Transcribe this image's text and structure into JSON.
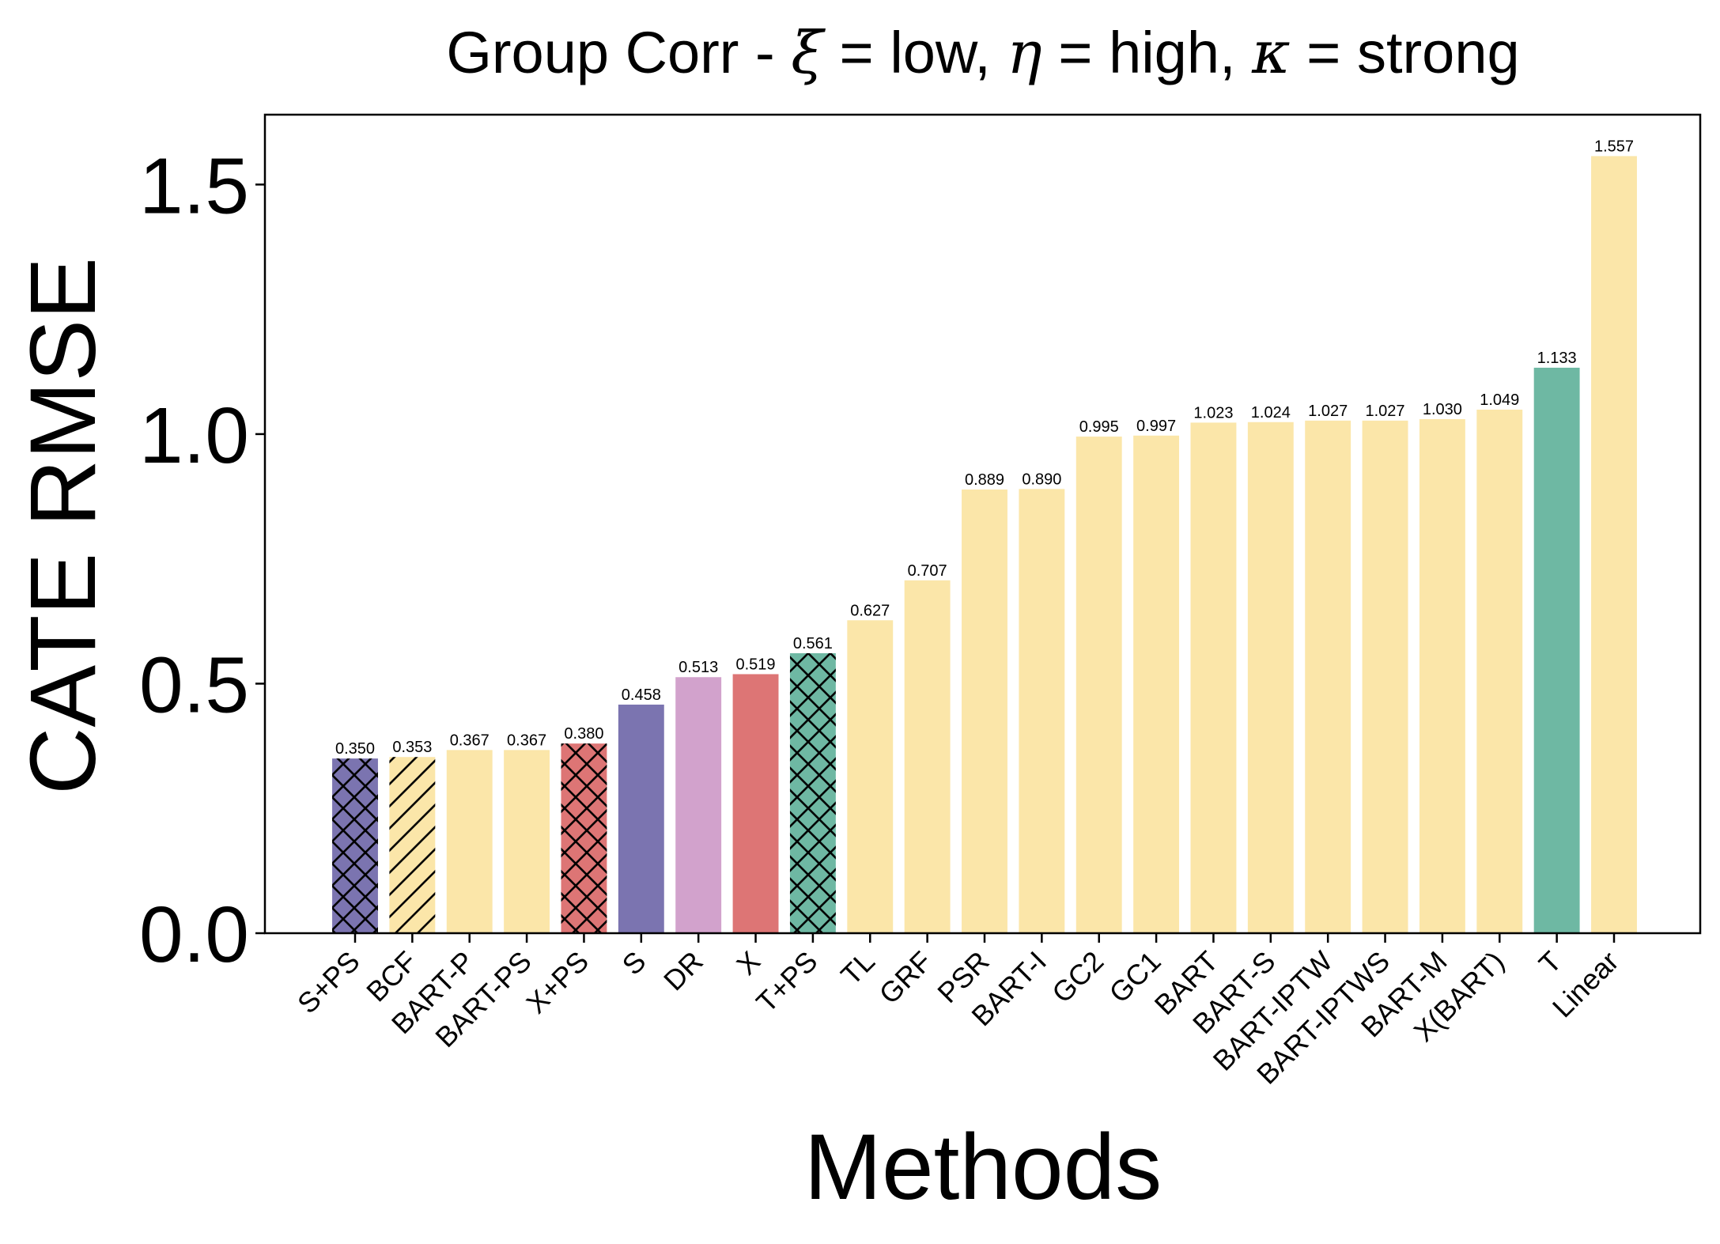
{
  "chart_data": {
    "type": "bar",
    "title_prefix": "Group Corr - ",
    "title_parts": [
      {
        "sym": "ξ",
        "text": " = low, "
      },
      {
        "sym": "η",
        "text": " = high, "
      },
      {
        "sym": "κ",
        "text": " = strong"
      }
    ],
    "title": "Group Corr - ξ = low, η = high, κ = strong",
    "xlabel": "Methods",
    "ylabel": "CATE RMSE",
    "ylim": [
      0,
      1.64
    ],
    "yticks": [
      "0.0",
      "0.5",
      "1.0",
      "1.5"
    ],
    "ytick_values": [
      0,
      0.5,
      1.0,
      1.5
    ],
    "categories": [
      "S+PS",
      "BCF",
      "BART-P",
      "BART-PS",
      "X+PS",
      "S",
      "DR",
      "X",
      "T+PS",
      "TL",
      "GRF",
      "PSR",
      "BART-I",
      "GC2",
      "GC1",
      "BART",
      "BART-S",
      "BART-IPTW",
      "BART-IPTWS",
      "BART-M",
      "X(BART)",
      "T",
      "Linear"
    ],
    "values": [
      0.35,
      0.353,
      0.367,
      0.367,
      0.38,
      0.458,
      0.513,
      0.519,
      0.561,
      0.627,
      0.707,
      0.889,
      0.89,
      0.995,
      0.997,
      1.023,
      1.024,
      1.027,
      1.027,
      1.03,
      1.049,
      1.133,
      1.557
    ],
    "value_labels": [
      "0.350",
      "0.353",
      "0.367",
      "0.367",
      "0.380",
      "0.458",
      "0.513",
      "0.519",
      "0.561",
      "0.627",
      "0.707",
      "0.889",
      "0.890",
      "0.995",
      "0.997",
      "1.023",
      "1.024",
      "1.027",
      "1.027",
      "1.030",
      "1.049",
      "1.133",
      "1.557"
    ],
    "colors": [
      "#7b74b0",
      "#fbe6a9",
      "#fbe6a9",
      "#fbe6a9",
      "#dd7575",
      "#7b74b0",
      "#d2a2cc",
      "#dd7575",
      "#6eb8a3",
      "#fbe6a9",
      "#fbe6a9",
      "#fbe6a9",
      "#fbe6a9",
      "#fbe6a9",
      "#fbe6a9",
      "#fbe6a9",
      "#fbe6a9",
      "#fbe6a9",
      "#fbe6a9",
      "#fbe6a9",
      "#fbe6a9",
      "#6eb8a3",
      "#fbe6a9"
    ],
    "hatches": [
      "cross",
      "diag",
      "",
      "",
      "cross",
      "",
      "",
      "",
      "cross",
      "",
      "",
      "",
      "",
      "",
      "",
      "",
      "",
      "",
      "",
      "",
      "",
      "",
      ""
    ],
    "grid": false
  }
}
